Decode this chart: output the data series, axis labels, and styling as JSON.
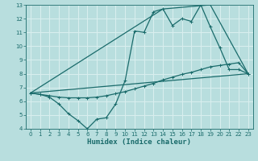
{
  "xlabel": "Humidex (Indice chaleur)",
  "xlim": [
    -0.5,
    23.5
  ],
  "ylim": [
    4,
    13
  ],
  "xticks": [
    0,
    1,
    2,
    3,
    4,
    5,
    6,
    7,
    8,
    9,
    10,
    11,
    12,
    13,
    14,
    15,
    16,
    17,
    18,
    19,
    20,
    21,
    22,
    23
  ],
  "yticks": [
    4,
    5,
    6,
    7,
    8,
    9,
    10,
    11,
    12,
    13
  ],
  "bg_color": "#b8dede",
  "grid_color": "#d8eeee",
  "line_color": "#1a6b6b",
  "line1_x": [
    0,
    1,
    2,
    3,
    4,
    5,
    6,
    7,
    8,
    9,
    10,
    11,
    12,
    13,
    14,
    15,
    16,
    17,
    18,
    19,
    20,
    21,
    22,
    23
  ],
  "line1_y": [
    6.6,
    6.5,
    6.4,
    6.3,
    6.25,
    6.25,
    6.25,
    6.3,
    6.4,
    6.55,
    6.7,
    6.9,
    7.1,
    7.3,
    7.55,
    7.75,
    7.95,
    8.1,
    8.3,
    8.5,
    8.6,
    8.7,
    8.8,
    8.0
  ],
  "line2_x": [
    0,
    1,
    2,
    3,
    4,
    5,
    6,
    7,
    8,
    9,
    10,
    11,
    12,
    13,
    14,
    15,
    16,
    17,
    18,
    19,
    20,
    21,
    22,
    23
  ],
  "line2_y": [
    6.6,
    6.5,
    6.3,
    5.8,
    5.1,
    4.6,
    4.0,
    4.7,
    4.8,
    5.8,
    7.5,
    11.1,
    11.0,
    12.5,
    12.7,
    11.5,
    12.0,
    11.8,
    13.0,
    11.4,
    9.9,
    8.3,
    8.3,
    8.0
  ],
  "line3_x": [
    0,
    23
  ],
  "line3_y": [
    6.6,
    8.0
  ],
  "line4_x": [
    0,
    14,
    19,
    23
  ],
  "line4_y": [
    6.6,
    12.7,
    13.0,
    8.0
  ]
}
